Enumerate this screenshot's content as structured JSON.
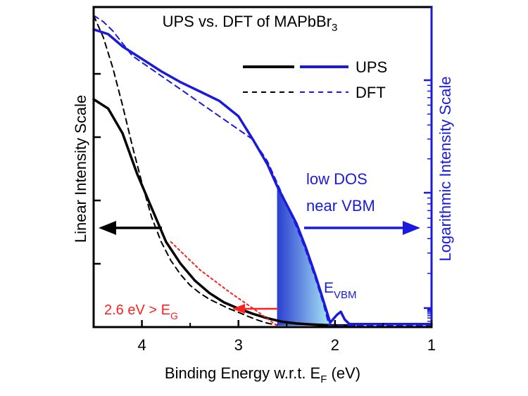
{
  "chart_data": {
    "type": "line",
    "title": {
      "pre": "UPS vs. DFT of MAPbBr",
      "sub": "3"
    },
    "xlabel": {
      "pre": "Binding Energy w.r.t. E",
      "sub": "F",
      "post": " (eV)"
    },
    "ylabel_left": "Linear Intensity Scale",
    "ylabel_right": "Logarithmic Intensity Scale",
    "xlim": [
      4.5,
      1.0
    ],
    "x_ticks": [
      "4",
      "3",
      "2",
      "1"
    ],
    "x_tick_values": [
      4,
      3,
      2,
      1
    ],
    "legend": [
      {
        "label": "UPS",
        "style": "solid"
      },
      {
        "label": "DFT",
        "style": "dashed"
      }
    ],
    "annotations": {
      "low_dos_line1": "low DOS",
      "low_dos_line2": "near VBM",
      "evbm": {
        "pre": "E",
        "sub": "VBM"
      },
      "gap": {
        "pre": "2.6 eV > E",
        "sub": "G"
      }
    },
    "colors": {
      "linear": "#000000",
      "log": "#1a1adc",
      "annotation_red": "#ff2020",
      "shade_dark": "#2a3fd0",
      "shade_light": "#a9e8f6"
    },
    "series": [
      {
        "name": "UPS",
        "scale": "linear",
        "color": "black",
        "style": "solid",
        "x": [
          4.5,
          4.35,
          4.2,
          4.05,
          3.9,
          3.75,
          3.6,
          3.45,
          3.3,
          3.15,
          3.0,
          2.85,
          2.7,
          2.55,
          2.4,
          2.25,
          2.1,
          2.0,
          1.9,
          1.8
        ],
        "y": [
          0.73,
          0.7,
          0.62,
          0.49,
          0.38,
          0.27,
          0.2,
          0.145,
          0.105,
          0.075,
          0.055,
          0.038,
          0.024,
          0.013,
          0.007,
          0.004,
          0.002,
          0.001,
          0.001,
          0.001
        ]
      },
      {
        "name": "DFT",
        "scale": "linear",
        "color": "black",
        "style": "dashed",
        "x": [
          4.5,
          4.4,
          4.3,
          4.2,
          4.1,
          4.0,
          3.9,
          3.8,
          3.7,
          3.6,
          3.5,
          3.4,
          3.3,
          3.2,
          3.1,
          3.0,
          2.9,
          2.8,
          2.7,
          2.6
        ],
        "y": [
          1.0,
          0.93,
          0.83,
          0.71,
          0.58,
          0.46,
          0.35,
          0.27,
          0.21,
          0.165,
          0.13,
          0.105,
          0.085,
          0.07,
          0.055,
          0.043,
          0.03,
          0.018,
          0.008,
          0.002
        ]
      },
      {
        "name": "UPS",
        "scale": "log",
        "color": "blue",
        "style": "solid",
        "x": [
          4.5,
          4.35,
          4.2,
          4.0,
          3.8,
          3.6,
          3.4,
          3.2,
          3.0,
          2.85,
          2.7,
          2.6,
          2.5,
          2.4,
          2.3,
          2.2,
          2.12,
          2.05,
          1.98,
          1.94,
          1.9,
          1.85,
          1.6,
          1.3,
          1.0
        ],
        "y": [
          0.955,
          0.94,
          0.9,
          0.86,
          0.82,
          0.785,
          0.755,
          0.725,
          0.675,
          0.6,
          0.52,
          0.45,
          0.39,
          0.33,
          0.25,
          0.16,
          0.08,
          0.01,
          0.035,
          0.045,
          0.02,
          0.005,
          0.005,
          0.005,
          0.005
        ]
      },
      {
        "name": "DFT",
        "scale": "log",
        "color": "blue",
        "style": "dashed",
        "x": [
          4.5,
          4.4,
          4.3,
          4.2,
          4.1,
          2.85,
          2.7,
          2.6,
          2.5,
          2.4,
          2.3,
          2.2,
          2.12,
          2.06,
          1.8,
          1.4,
          1.0
        ],
        "y": [
          1.0,
          0.98,
          0.95,
          0.91,
          0.87,
          0.6,
          0.53,
          0.46,
          0.39,
          0.32,
          0.24,
          0.15,
          0.07,
          0.0,
          0.0,
          0.0,
          0.0
        ]
      },
      {
        "name": "",
        "scale": "linear",
        "color": "red",
        "style": "dotted",
        "x": [
          3.7,
          3.4,
          3.1,
          2.8,
          2.6
        ],
        "y": [
          0.27,
          0.18,
          0.11,
          0.045,
          0.0
        ]
      }
    ],
    "shaded_region": {
      "x_from": 2.6,
      "x_to": 2.05,
      "series": "log UPS"
    }
  }
}
